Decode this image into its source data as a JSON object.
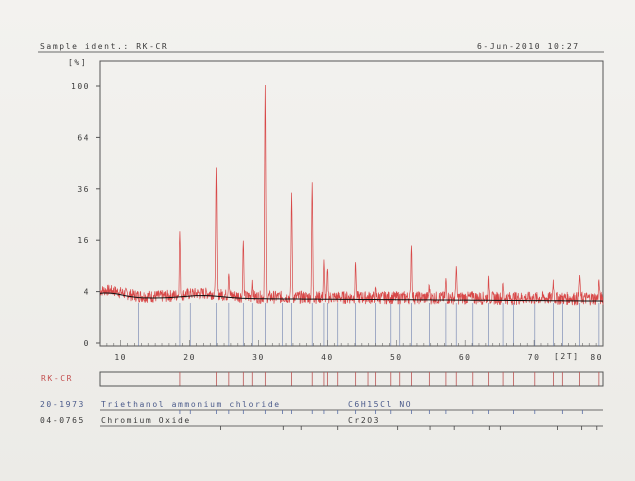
{
  "header": {
    "sample_ident": "Sample ident.: RK-CR",
    "date": "6-Jun-2010 10:27"
  },
  "chart_data": {
    "type": "line",
    "ylabel": "[%]",
    "xlabel": "[2T]",
    "y_scale": "sqrt",
    "ylim": [
      0,
      100
    ],
    "xlim": [
      7,
      80
    ],
    "y_ticks": [
      "100",
      "64",
      "36",
      "16",
      "4",
      "0"
    ],
    "y_tick_values": [
      100,
      64,
      36,
      16,
      4,
      0
    ],
    "x_ticks": [
      "10",
      "20",
      "30",
      "40",
      "50",
      "60",
      "70",
      "80"
    ],
    "x_tick_values": [
      10,
      20,
      30,
      40,
      50,
      60,
      70,
      80
    ],
    "peaks": [
      {
        "x": 18.6,
        "y": 19
      },
      {
        "x": 23.9,
        "y": 46
      },
      {
        "x": 25.7,
        "y": 8
      },
      {
        "x": 27.8,
        "y": 16
      },
      {
        "x": 29.1,
        "y": 6
      },
      {
        "x": 31.0,
        "y": 100
      },
      {
        "x": 34.8,
        "y": 34
      },
      {
        "x": 37.8,
        "y": 39
      },
      {
        "x": 39.5,
        "y": 10
      },
      {
        "x": 40.0,
        "y": 8
      },
      {
        "x": 44.1,
        "y": 10
      },
      {
        "x": 47.0,
        "y": 4
      },
      {
        "x": 52.2,
        "y": 15
      },
      {
        "x": 54.8,
        "y": 5
      },
      {
        "x": 57.2,
        "y": 6
      },
      {
        "x": 58.7,
        "y": 9
      },
      {
        "x": 61.1,
        "y": 4
      },
      {
        "x": 63.4,
        "y": 6
      },
      {
        "x": 65.5,
        "y": 5
      },
      {
        "x": 72.8,
        "y": 6
      },
      {
        "x": 76.6,
        "y": 7
      },
      {
        "x": 79.4,
        "y": 6
      }
    ],
    "baseline": 3.2,
    "noise": 0.9,
    "colors": {
      "pattern": "#d84848",
      "background": "#111111",
      "reference": "#5a6fa5"
    },
    "reference_lines": [
      12.6,
      18.6,
      20.1,
      23.9,
      25.7,
      27.8,
      29.1,
      31.0,
      33.5,
      34.8,
      37.8,
      39.5,
      40.0,
      41.5,
      44.1,
      47.0,
      49.2,
      50.5,
      52.2,
      54.8,
      57.2,
      58.7,
      61.1,
      63.4,
      65.5,
      67.0,
      70.1,
      72.8,
      74.1,
      76.6,
      79.4
    ]
  },
  "pattern_strip": {
    "label": "RK-CR",
    "lines": [
      18.6,
      23.9,
      25.7,
      27.8,
      29.1,
      31.0,
      34.8,
      37.8,
      39.5,
      40.0,
      41.5,
      44.1,
      45.9,
      47.0,
      49.2,
      50.5,
      52.2,
      54.8,
      57.2,
      58.7,
      61.1,
      63.4,
      65.5,
      67.0,
      70.1,
      72.8,
      74.1,
      76.6,
      79.4
    ]
  },
  "references": [
    {
      "code": "20-1973",
      "name": "Triethanol ammonium chloride",
      "formula": "C6H15Cl NO",
      "sticks": [
        18.6,
        20.1,
        23.9,
        25.7,
        27.8,
        31.0,
        33.5,
        34.8,
        37.8,
        39.5,
        41.5,
        44.1,
        47.0,
        49.2,
        52.2,
        54.8,
        57.2,
        61.1,
        63.4,
        67.0,
        70.1,
        74.1,
        77.0
      ]
    },
    {
      "code": "04-0765",
      "name": "Chromium Oxide",
      "formula": "Cr2O3",
      "sticks": [
        24.5,
        33.6,
        36.2,
        41.5,
        50.2,
        54.9,
        58.4,
        63.5,
        65.1,
        73.4,
        76.9,
        79.1
      ]
    }
  ]
}
